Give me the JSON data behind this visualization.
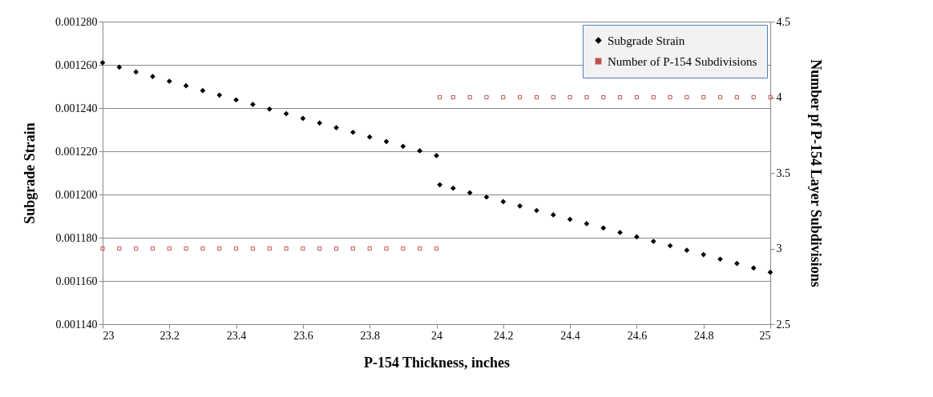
{
  "chart_data": {
    "type": "scatter",
    "xlabel": "P-154 Thickness, inches",
    "ylabel": "Subgrade Strain",
    "y2label": "Number pf P-154 Layer Subdivisions",
    "x": [
      23,
      23.05,
      23.1,
      23.15,
      23.2,
      23.25,
      23.3,
      23.35,
      23.4,
      23.45,
      23.5,
      23.55,
      23.6,
      23.65,
      23.7,
      23.75,
      23.8,
      23.85,
      23.9,
      23.95,
      24,
      24.01,
      24.05,
      24.1,
      24.15,
      24.2,
      24.25,
      24.3,
      24.35,
      24.4,
      24.45,
      24.5,
      24.55,
      24.6,
      24.65,
      24.7,
      24.75,
      24.8,
      24.85,
      24.9,
      24.95,
      25
    ],
    "series": [
      {
        "name": "Subgrade Strain",
        "color": "#000000",
        "marker": "diamond",
        "values": [
          0.001261,
          0.0012589,
          0.0012567,
          0.0012546,
          0.0012524,
          0.0012503,
          0.0012481,
          0.001246,
          0.0012438,
          0.0012417,
          0.0012395,
          0.0012374,
          0.0012352,
          0.0012331,
          0.0012309,
          0.0012288,
          0.0012266,
          0.0012245,
          0.0012223,
          0.0012202,
          0.001218,
          0.0012045,
          0.0012029,
          0.0012008,
          0.0011988,
          0.0011967,
          0.0011947,
          0.0011926,
          0.0011906,
          0.0011885,
          0.0011865,
          0.0011845,
          0.0011824,
          0.0011804,
          0.0011783,
          0.0011763,
          0.0011742,
          0.0011722,
          0.0011701,
          0.0011681,
          0.001166,
          0.001164
        ]
      },
      {
        "name": "Number of P-154 Subdivisions",
        "color": "#c0504d",
        "marker": "square",
        "axis": "y2",
        "values": [
          3,
          3,
          3,
          3,
          3,
          3,
          3,
          3,
          3,
          3,
          3,
          3,
          3,
          3,
          3,
          3,
          3,
          3,
          3,
          3,
          3,
          4,
          4,
          4,
          4,
          4,
          4,
          4,
          4,
          4,
          4,
          4,
          4,
          4,
          4,
          4,
          4,
          4,
          4,
          4,
          4,
          4
        ]
      }
    ],
    "xlim": [
      23,
      25
    ],
    "xticks": [
      23,
      23.2,
      23.4,
      23.6,
      23.8,
      24,
      24.2,
      24.4,
      24.6,
      24.8,
      25
    ],
    "ylim": [
      0.00114,
      0.00128
    ],
    "yticks": [
      {
        "value": 0.00114,
        "label": "0.001140"
      },
      {
        "value": 0.00116,
        "label": "0.001160"
      },
      {
        "value": 0.00118,
        "label": "0.001180"
      },
      {
        "value": 0.0012,
        "label": "0.001200"
      },
      {
        "value": 0.00122,
        "label": "0.001220"
      },
      {
        "value": 0.00124,
        "label": "0.001240"
      },
      {
        "value": 0.00126,
        "label": "0.001260"
      },
      {
        "value": 0.00128,
        "label": "0.001280"
      }
    ],
    "y2lim": [
      2.5,
      4.5
    ],
    "y2ticks": [
      2.5,
      3,
      3.5,
      4,
      4.5
    ],
    "grid": "y",
    "legend": "top right"
  }
}
